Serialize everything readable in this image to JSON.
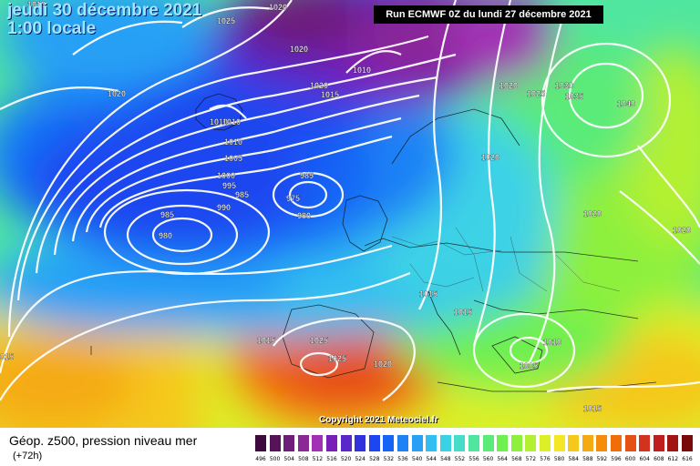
{
  "header": {
    "date": "jeudi 30 décembre 2021",
    "time": "1:00 locale",
    "run": "Run ECMWF 0Z du lundi 27 décembre 2021"
  },
  "footer": {
    "title": "Géop. z500, pression niveau mer",
    "lead": "(+72h)",
    "copyright": "Copyright 2021 Meteociel.fr"
  },
  "scale": {
    "values": [
      "496",
      "500",
      "504",
      "508",
      "512",
      "516",
      "520",
      "524",
      "528",
      "532",
      "536",
      "540",
      "544",
      "548",
      "552",
      "556",
      "560",
      "564",
      "568",
      "572",
      "576",
      "580",
      "584",
      "588",
      "592",
      "596",
      "600",
      "604",
      "608",
      "612",
      "616"
    ],
    "colors": [
      "#3c0a3c",
      "#55145a",
      "#6e1e78",
      "#8a2896",
      "#a230b4",
      "#7a1eb8",
      "#5a28c8",
      "#3232dc",
      "#1e46f0",
      "#1464f5",
      "#1e82f5",
      "#28a0f5",
      "#32bef0",
      "#3cd2e6",
      "#46dcc8",
      "#50e6a0",
      "#5aeb78",
      "#6ef050",
      "#8cf03c",
      "#b4f032",
      "#dcf028",
      "#f5e628",
      "#f5c81e",
      "#f5aa14",
      "#f58c0a",
      "#f06e0a",
      "#e65014",
      "#d2321e",
      "#be1e1e",
      "#a01414",
      "#7a0a0a"
    ]
  },
  "map": {
    "pressure_labels": [
      "1010",
      "1025",
      "1020",
      "1020",
      "1010",
      "1020",
      "1015",
      "1010",
      "1010",
      "1020",
      "1010",
      "1005",
      "1000",
      "995",
      "985",
      "990",
      "985",
      "975",
      "980",
      "985",
      "980",
      "1020",
      "1025",
      "1030",
      "1035",
      "1040",
      "1020",
      "1020",
      "1020",
      "1015",
      "1015",
      "1015",
      "1025",
      "1025",
      "1020",
      "1010",
      "1005",
      "1015",
      "015"
    ]
  },
  "map_palette": {
    "ocean": "#1e46f0",
    "deep_low": "#3232dc",
    "purple": "#8a2896",
    "cyan": "#32bef0",
    "green": "#6ef050",
    "yellow": "#f5e628",
    "orange": "#f58c0a",
    "isobar": "#ffffff"
  }
}
